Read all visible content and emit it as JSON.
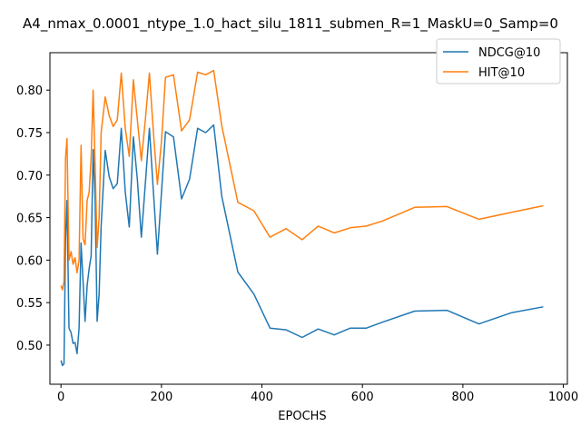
{
  "chart_data": {
    "type": "line",
    "title": "A4_nmax_0.0001_ntype_1.0_hact_silu_1811_submen_R=1_MaskU=0_Samp=0",
    "xlabel": "EPOCHS",
    "ylabel": "",
    "xlim": [
      -22,
      1008
    ],
    "ylim": [
      0.454,
      0.844
    ],
    "xticks": [
      0,
      200,
      400,
      600,
      800,
      1000
    ],
    "yticks": [
      0.5,
      0.55,
      0.6,
      0.65,
      0.7,
      0.75,
      0.8
    ],
    "xtick_labels": [
      "0",
      "200",
      "400",
      "600",
      "800",
      "1000"
    ],
    "ytick_labels": [
      "0.50",
      "0.55",
      "0.60",
      "0.65",
      "0.70",
      "0.75",
      "0.80"
    ],
    "grid": false,
    "legend_position": "top-right",
    "series": [
      {
        "name": "NDCG@10",
        "color": "#1f77b4",
        "x": [
          0,
          3,
          6,
          9,
          12,
          16,
          20,
          24,
          28,
          32,
          36,
          40,
          44,
          48,
          52,
          56,
          60,
          64,
          68,
          72,
          76,
          80,
          88,
          96,
          104,
          112,
          120,
          128,
          136,
          144,
          152,
          160,
          168,
          176,
          184,
          192,
          200,
          208,
          224,
          240,
          256,
          272,
          288,
          304,
          320,
          352,
          384,
          416,
          448,
          480,
          512,
          544,
          576,
          608,
          640,
          704,
          768,
          832,
          896,
          960
        ],
        "y": [
          0.482,
          0.476,
          0.478,
          0.625,
          0.67,
          0.52,
          0.515,
          0.502,
          0.503,
          0.49,
          0.52,
          0.62,
          0.575,
          0.528,
          0.57,
          0.59,
          0.605,
          0.73,
          0.67,
          0.528,
          0.56,
          0.64,
          0.729,
          0.698,
          0.684,
          0.69,
          0.755,
          0.68,
          0.639,
          0.745,
          0.695,
          0.627,
          0.69,
          0.755,
          0.68,
          0.607,
          0.68,
          0.751,
          0.745,
          0.672,
          0.695,
          0.755,
          0.75,
          0.759,
          0.675,
          0.586,
          0.56,
          0.52,
          0.518,
          0.509,
          0.519,
          0.512,
          0.52,
          0.52,
          0.527,
          0.54,
          0.541,
          0.525,
          0.538,
          0.545
        ]
      },
      {
        "name": "HIT@10",
        "color": "#ff7f0e",
        "x": [
          0,
          3,
          6,
          9,
          12,
          16,
          20,
          24,
          28,
          32,
          36,
          40,
          44,
          48,
          52,
          56,
          60,
          64,
          68,
          72,
          76,
          80,
          88,
          96,
          104,
          112,
          120,
          128,
          136,
          144,
          152,
          160,
          168,
          176,
          184,
          192,
          200,
          208,
          224,
          240,
          256,
          272,
          288,
          304,
          320,
          352,
          384,
          416,
          448,
          480,
          512,
          544,
          576,
          608,
          640,
          704,
          768,
          832,
          896,
          960
        ],
        "y": [
          0.57,
          0.565,
          0.575,
          0.72,
          0.743,
          0.6,
          0.61,
          0.595,
          0.603,
          0.585,
          0.6,
          0.735,
          0.625,
          0.618,
          0.67,
          0.68,
          0.72,
          0.8,
          0.71,
          0.615,
          0.65,
          0.75,
          0.792,
          0.77,
          0.757,
          0.765,
          0.82,
          0.755,
          0.722,
          0.812,
          0.765,
          0.717,
          0.765,
          0.82,
          0.75,
          0.689,
          0.74,
          0.815,
          0.818,
          0.752,
          0.765,
          0.821,
          0.818,
          0.823,
          0.758,
          0.668,
          0.658,
          0.627,
          0.637,
          0.624,
          0.64,
          0.632,
          0.638,
          0.64,
          0.646,
          0.662,
          0.663,
          0.648,
          0.656,
          0.664
        ]
      }
    ]
  }
}
